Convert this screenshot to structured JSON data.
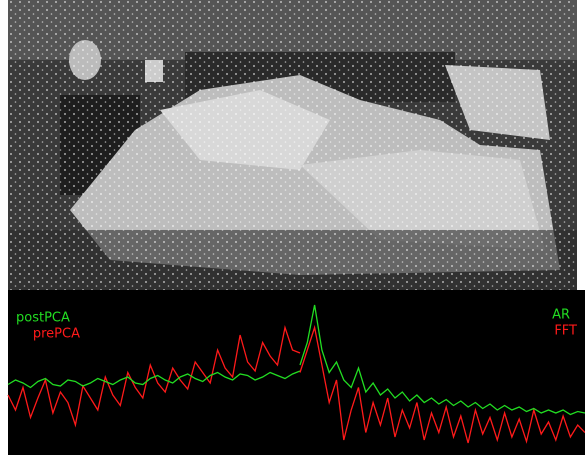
{
  "chart_data": [
    {
      "type": "line",
      "ylim": [
        0,
        100
      ],
      "series": [
        {
          "name": "postPCA",
          "color": "#22dd22",
          "values": [
            47,
            50,
            48,
            45,
            49,
            51,
            47,
            46,
            50,
            49,
            46,
            48,
            51,
            49,
            47,
            50,
            52,
            48,
            47,
            51,
            53,
            50,
            48,
            52,
            54,
            51,
            49,
            53,
            55,
            52,
            50,
            54,
            53,
            50,
            52,
            55,
            53,
            51,
            54,
            56
          ]
        },
        {
          "name": "prePCA",
          "color": "#ff1a1a",
          "values": [
            40,
            30,
            45,
            25,
            38,
            50,
            28,
            42,
            35,
            20,
            46,
            38,
            30,
            52,
            40,
            33,
            55,
            45,
            38,
            60,
            48,
            42,
            58,
            50,
            44,
            62,
            55,
            48,
            70,
            58,
            52,
            80,
            62,
            56,
            75,
            66,
            60,
            85,
            70,
            68
          ]
        }
      ]
    },
    {
      "type": "line",
      "ylim": [
        0,
        100
      ],
      "series": [
        {
          "name": "AR",
          "color": "#22dd22",
          "values": [
            60,
            75,
            100,
            70,
            55,
            62,
            50,
            45,
            58,
            42,
            48,
            40,
            44,
            38,
            42,
            36,
            40,
            35,
            38,
            34,
            37,
            33,
            36,
            32,
            35,
            31,
            34,
            30,
            33,
            30,
            32,
            29,
            31,
            28,
            30,
            28,
            30,
            27,
            29,
            28
          ]
        },
        {
          "name": "FFT",
          "color": "#ff1a1a",
          "values": [
            55,
            70,
            85,
            60,
            35,
            50,
            10,
            30,
            45,
            15,
            35,
            20,
            38,
            12,
            30,
            18,
            35,
            10,
            28,
            15,
            32,
            12,
            26,
            8,
            30,
            14,
            25,
            10,
            28,
            12,
            24,
            9,
            30,
            14,
            22,
            10,
            26,
            12,
            20,
            15
          ]
        }
      ]
    }
  ]
}
